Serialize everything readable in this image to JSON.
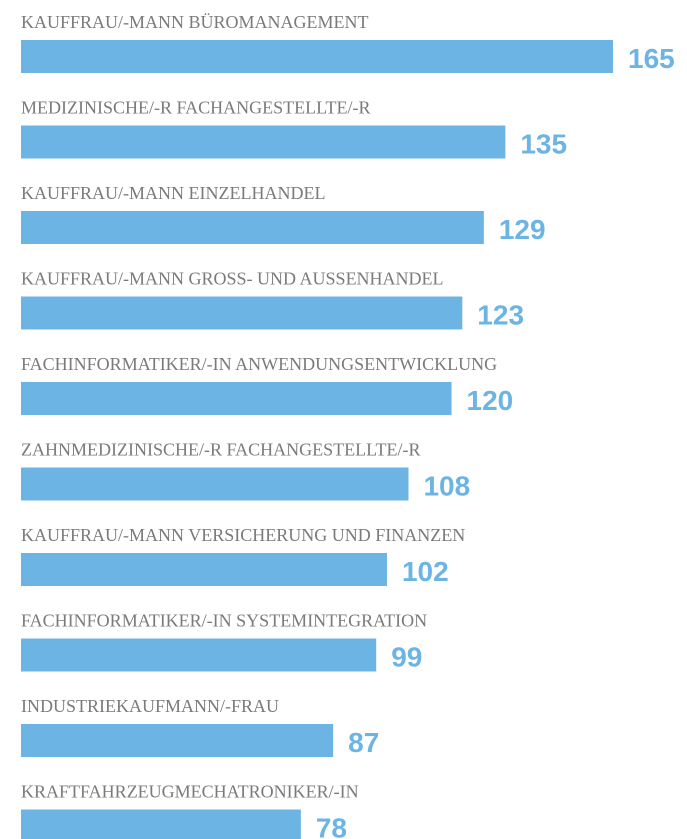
{
  "chart_data": {
    "type": "bar",
    "orientation": "horizontal",
    "categories": [
      "KAUFFRAU/-MANN BÜROMANAGEMENT",
      "MEDIZINISCHE/-R FACHANGESTELLTE/-R",
      "KAUFFRAU/-MANN EINZELHANDEL",
      "KAUFFRAU/-MANN GROSS- UND AUSSENHANDEL",
      "FACHINFORMATIKER/-IN ANWENDUNGSENTWICKLUNG",
      "ZAHNMEDIZINISCHE/-R FACHANGESTELLTE/-R",
      "KAUFFRAU/-MANN VERSICHERUNG UND FINANZEN",
      "FACHINFORMATIKER/-IN SYSTEMINTEGRATION",
      "INDUSTRIEKAUFMANN/-FRAU",
      "KRAFTFAHRZEUGMECHATRONIKER/-IN"
    ],
    "values": [
      165,
      135,
      129,
      123,
      120,
      108,
      102,
      99,
      87,
      78
    ],
    "color": "#6cb4e4"
  }
}
